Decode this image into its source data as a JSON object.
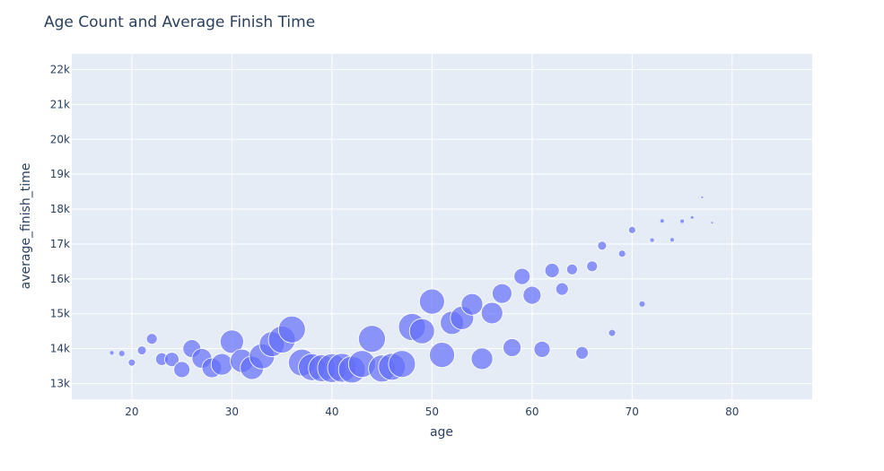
{
  "chart_data": {
    "type": "scatter",
    "title": "Age Count and Average Finish Time",
    "xlabel": "age",
    "ylabel": "average_finish_time",
    "xlim": [
      14,
      88
    ],
    "ylim": [
      12550,
      22450
    ],
    "x_ticks": [
      20,
      30,
      40,
      50,
      60,
      70,
      80
    ],
    "y_ticks": [
      13000,
      14000,
      15000,
      16000,
      17000,
      18000,
      19000,
      20000,
      21000,
      22000
    ],
    "y_tick_labels": [
      "13k",
      "14k",
      "15k",
      "16k",
      "17k",
      "18k",
      "19k",
      "20k",
      "21k",
      "22k"
    ],
    "grid": true,
    "legend": "none",
    "colors": {
      "marker": "#636efa",
      "plot_bg": "#e5ecf6",
      "grid": "#ffffff",
      "text": "#2a3f5f"
    },
    "series": [
      {
        "x": [
          18,
          19,
          20,
          21,
          22,
          23,
          24,
          25,
          26,
          27,
          28,
          29,
          30,
          31,
          32,
          33,
          34,
          35,
          36,
          37,
          38,
          39,
          40,
          41,
          42,
          43,
          44,
          45,
          46,
          47,
          48,
          49,
          50,
          51,
          52,
          53,
          54,
          55,
          56,
          57,
          58,
          59,
          60,
          61,
          62,
          63,
          64,
          65,
          66,
          67,
          68,
          69,
          70,
          71,
          72,
          73,
          74,
          75,
          76,
          77,
          78
        ],
        "y": [
          13880,
          13860,
          13600,
          13950,
          14280,
          13700,
          13690,
          13400,
          14000,
          13720,
          13450,
          13550,
          14200,
          13650,
          13450,
          13780,
          14130,
          14260,
          14550,
          13600,
          13470,
          13440,
          13440,
          13450,
          13400,
          13560,
          14280,
          13430,
          13480,
          13560,
          14620,
          14500,
          15350,
          13820,
          14740,
          14880,
          15270,
          13710,
          15020,
          15580,
          14030,
          16070,
          15530,
          13980,
          16240,
          15710,
          16270,
          13880,
          16360,
          16950,
          14450,
          16720,
          17400,
          15280,
          17110,
          17660,
          17120,
          17650,
          17760,
          18340,
          17610
        ],
        "size": [
          2,
          3,
          4,
          5,
          6,
          7,
          8,
          9,
          10,
          11,
          11,
          12,
          13,
          13,
          13,
          14,
          14,
          15,
          15,
          15,
          15,
          15,
          16,
          16,
          15,
          15,
          15,
          15,
          15,
          15,
          15,
          14,
          14,
          14,
          13,
          13,
          12,
          12,
          12,
          11,
          10,
          9,
          10,
          9,
          8,
          7,
          6,
          7,
          6,
          5,
          4,
          4,
          4,
          3,
          2,
          2,
          2,
          2,
          1.5,
          1,
          1
        ]
      }
    ]
  }
}
